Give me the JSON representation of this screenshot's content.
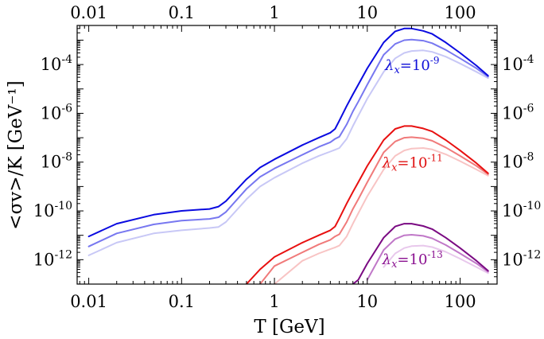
{
  "chart_data": {
    "type": "line",
    "title": "",
    "xlabel": "T [GeV]",
    "ylabel": "<σv>/K [GeV⁻¹]",
    "xscale": "log",
    "yscale": "log",
    "xlim": [
      0.0075,
      250
    ],
    "ylim": [
      1e-13,
      0.004
    ],
    "grid": false,
    "x_ticks": [
      0.01,
      0.1,
      1,
      10,
      100
    ],
    "x_tick_labels": [
      "0.01",
      "0.1",
      "1",
      "10",
      "100"
    ],
    "y_ticks": [
      1e-12,
      1e-10,
      1e-08,
      1e-06,
      0.0001
    ],
    "y_tick_labels": [
      {
        "base": "10",
        "exp": "-12"
      },
      {
        "base": "10",
        "exp": "-10"
      },
      {
        "base": "10",
        "exp": "-8"
      },
      {
        "base": "10",
        "exp": "-6"
      },
      {
        "base": "10",
        "exp": "-4"
      }
    ],
    "annotations": [
      {
        "prefix": "λ",
        "sub": "x",
        "mid": "=10",
        "sup": "-9",
        "x": 15.5,
        "y": 6e-05,
        "color": "#1010d8"
      },
      {
        "prefix": "λ",
        "sub": "x",
        "mid": "=10",
        "sup": "-11",
        "x": 14.5,
        "y": 6e-09,
        "color": "#e01010"
      },
      {
        "prefix": "λ",
        "sub": "x",
        "mid": "=10",
        "sup": "-13",
        "x": 14.5,
        "y": 6.5e-13,
        "color": "#8a1090"
      }
    ],
    "x": [
      0.01,
      0.02,
      0.05,
      0.1,
      0.2,
      0.25,
      0.3,
      0.5,
      0.7,
      1,
      2,
      3,
      4,
      4.5,
      5,
      6,
      7,
      8,
      10,
      15,
      20,
      25,
      30,
      40,
      50,
      70,
      100,
      150,
      200
    ],
    "series": [
      {
        "color": "#0a0ae0",
        "values": [
          9e-12,
          3e-11,
          7e-11,
          1e-10,
          1.2e-10,
          1.5e-10,
          2.5e-10,
          2e-09,
          6e-09,
          1.3e-08,
          5e-08,
          1e-07,
          1.6e-07,
          2.3e-07,
          5e-07,
          2e-06,
          6e-06,
          1.5e-05,
          7e-05,
          0.0008,
          0.0023,
          0.003,
          0.003,
          0.0024,
          0.0018,
          0.0008,
          0.0003,
          9e-05,
          3.5e-05
        ]
      },
      {
        "color": "#7878f0",
        "values": [
          3.5e-12,
          1.2e-11,
          2.8e-11,
          4e-11,
          4.7e-11,
          5.5e-11,
          9e-11,
          8e-10,
          2.5e-09,
          5.5e-09,
          2e-08,
          4.2e-08,
          6.5e-08,
          9e-08,
          1.1e-07,
          3.5e-07,
          1.2e-06,
          3e-06,
          1.5e-05,
          0.00025,
          0.0007,
          0.001,
          0.00105,
          0.00095,
          0.00075,
          0.0004,
          0.00018,
          7e-05,
          3.2e-05
        ]
      },
      {
        "color": "#c8c8f6",
        "values": [
          1.5e-12,
          5e-12,
          1.2e-11,
          1.6e-11,
          2e-11,
          2.2e-11,
          3.5e-11,
          3e-10,
          1e-09,
          2.3e-09,
          9e-09,
          1.8e-08,
          2.7e-08,
          3.2e-08,
          3.8e-08,
          9e-08,
          3e-07,
          8e-07,
          4e-06,
          5e-05,
          0.00018,
          0.0003,
          0.00036,
          0.00038,
          0.00033,
          0.00021,
          0.00011,
          5e-05,
          2.8e-05
        ]
      },
      {
        "color": "#e81010",
        "values": [
          null,
          null,
          null,
          null,
          null,
          null,
          null,
          1e-13,
          4e-13,
          1.3e-12,
          5e-12,
          1e-11,
          1.6e-11,
          2.3e-11,
          5e-11,
          2e-10,
          6e-10,
          1.5e-09,
          7e-09,
          8e-08,
          2.3e-07,
          3e-07,
          3e-07,
          2.4e-07,
          1.8e-07,
          8e-08,
          3e-08,
          9e-09,
          3.5e-09
        ]
      },
      {
        "color": "#f07a7a",
        "values": [
          null,
          null,
          null,
          null,
          null,
          null,
          null,
          null,
          1e-13,
          5.5e-13,
          2e-12,
          4.2e-12,
          6.5e-12,
          9e-12,
          1.1e-11,
          3.5e-11,
          1.2e-10,
          3e-10,
          1.5e-09,
          2.5e-08,
          7e-08,
          1e-07,
          1.05e-07,
          9.5e-08,
          7.5e-08,
          4e-08,
          1.8e-08,
          7e-09,
          3.2e-09
        ]
      },
      {
        "color": "#f8c4c4",
        "values": [
          null,
          null,
          null,
          null,
          null,
          null,
          null,
          null,
          null,
          1e-13,
          9e-13,
          1.8e-12,
          2.7e-12,
          3.2e-12,
          3.8e-12,
          9e-12,
          3e-11,
          8e-11,
          4e-10,
          5e-09,
          1.8e-08,
          3e-08,
          3.6e-08,
          3.8e-08,
          3.3e-08,
          2.1e-08,
          1.1e-08,
          5e-09,
          2.8e-09
        ]
      },
      {
        "color": "#7a0a82",
        "values": [
          null,
          null,
          null,
          null,
          null,
          null,
          null,
          null,
          null,
          null,
          null,
          null,
          null,
          null,
          null,
          null,
          1e-13,
          1.5e-13,
          7e-13,
          8e-12,
          2.3e-11,
          3e-11,
          3e-11,
          2.4e-11,
          1.8e-11,
          8e-12,
          3e-12,
          9e-13,
          3.5e-13
        ]
      },
      {
        "color": "#c078c8",
        "values": [
          null,
          null,
          null,
          null,
          null,
          null,
          null,
          null,
          null,
          null,
          null,
          null,
          null,
          null,
          null,
          null,
          null,
          null,
          1.5e-13,
          2.5e-12,
          7e-12,
          1e-11,
          1.05e-11,
          9.5e-12,
          7.5e-12,
          4e-12,
          1.8e-12,
          7e-13,
          3.2e-13
        ]
      },
      {
        "color": "#e8c8ec",
        "values": [
          null,
          null,
          null,
          null,
          null,
          null,
          null,
          null,
          null,
          null,
          null,
          null,
          null,
          null,
          null,
          null,
          null,
          null,
          null,
          5e-13,
          1.8e-12,
          3e-12,
          3.6e-12,
          3.8e-12,
          3.3e-12,
          2.1e-12,
          1.1e-12,
          5e-13,
          2.8e-13
        ]
      }
    ]
  }
}
